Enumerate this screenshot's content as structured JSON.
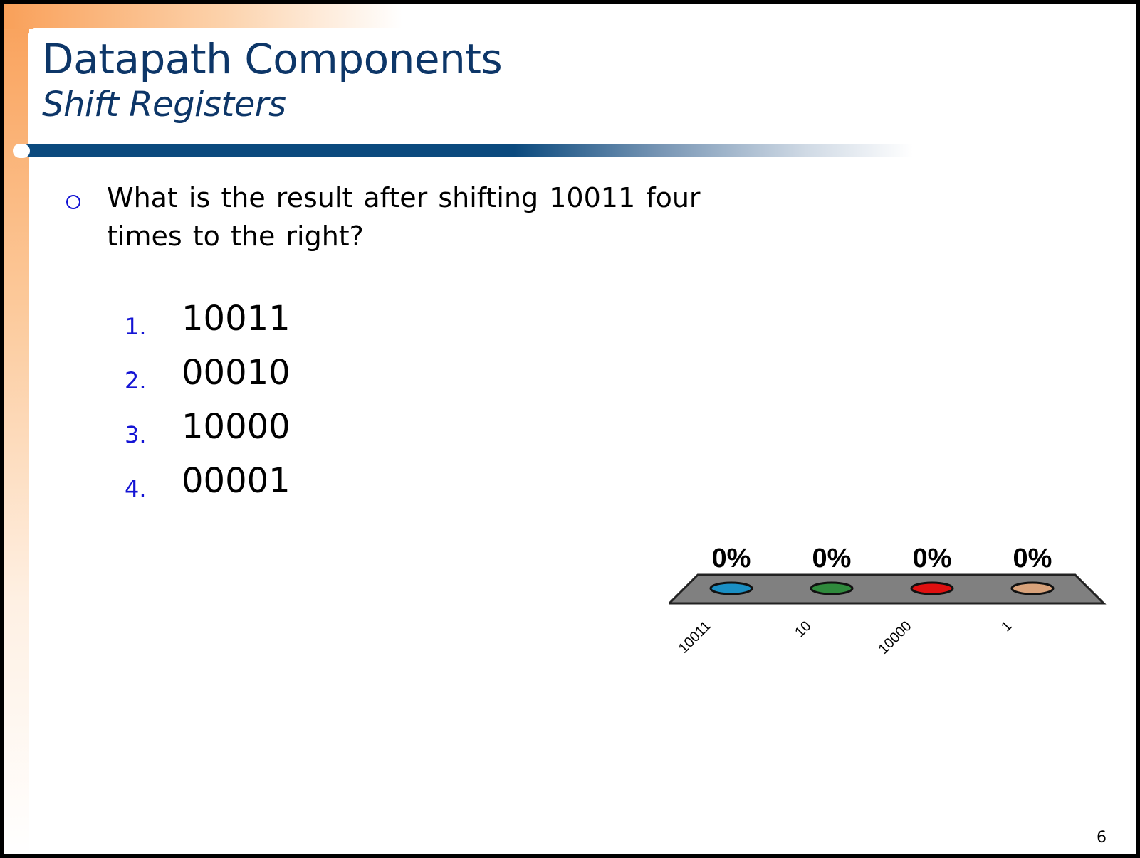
{
  "slide": {
    "title": "Datapath Components",
    "subtitle": "Shift Registers",
    "question": "What is the result after shifting 10011 four times to the right?",
    "options": [
      {
        "number": "1.",
        "text": "10011"
      },
      {
        "number": "2.",
        "text": "00010"
      },
      {
        "number": "3.",
        "text": "10000"
      },
      {
        "number": "4.",
        "text": "00001"
      }
    ],
    "page_number": "6"
  },
  "chart_data": {
    "type": "bar",
    "categories": [
      "10011",
      "10",
      "10000",
      "1"
    ],
    "values": [
      0,
      0,
      0,
      0
    ],
    "value_labels": [
      "0%",
      "0%",
      "0%",
      "0%"
    ],
    "ylim": [
      0,
      100
    ],
    "colors": [
      "#1a8fc4",
      "#2f8a3c",
      "#e01010",
      "#d8a27a"
    ],
    "platform_color": "#808080"
  }
}
